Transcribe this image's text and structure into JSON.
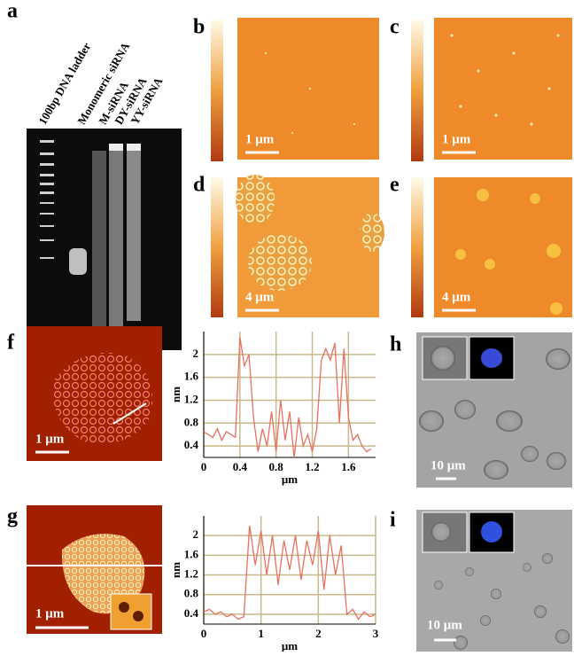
{
  "panel_labels": [
    "a",
    "b",
    "c",
    "d",
    "e",
    "f",
    "g",
    "h",
    "i"
  ],
  "gel_lane_labels": [
    "100bp DNA ladder",
    "Monomeric siRNA",
    "M-siRNA",
    "DY-siRNA",
    "YY-siRNA"
  ],
  "scale_bars": [
    "1 μm",
    "1 μm",
    "4 μm",
    "4 μm",
    "1 μm",
    "10 μm",
    "1 μm",
    "10 μm"
  ],
  "chart_data": [
    {
      "type": "line",
      "color": "#e8705e",
      "grid": true,
      "xlabel": "μm",
      "ylabel": "nm",
      "x": [
        0,
        0.05,
        0.1,
        0.15,
        0.2,
        0.25,
        0.3,
        0.35,
        0.4,
        0.45,
        0.5,
        0.55,
        0.6,
        0.65,
        0.7,
        0.75,
        0.8,
        0.85,
        0.9,
        0.95,
        1.0,
        1.05,
        1.1,
        1.15,
        1.2,
        1.25,
        1.3,
        1.35,
        1.4,
        1.45,
        1.5,
        1.55,
        1.6,
        1.65,
        1.7,
        1.75,
        1.8,
        1.85
      ],
      "values": [
        0.65,
        0.6,
        0.55,
        0.7,
        0.5,
        0.65,
        0.6,
        0.55,
        2.3,
        1.8,
        2.0,
        0.9,
        0.3,
        0.7,
        0.4,
        1.0,
        0.3,
        1.2,
        0.5,
        1.0,
        0.2,
        0.9,
        0.4,
        0.6,
        0.3,
        0.7,
        1.9,
        2.1,
        1.9,
        2.2,
        0.8,
        2.1,
        0.9,
        0.5,
        0.6,
        0.4,
        0.3,
        0.35
      ],
      "xlim": [
        0,
        1.9
      ],
      "ylim": [
        0.2,
        2.4
      ],
      "xticks": [
        0,
        0.4,
        0.8,
        1.2,
        1.6
      ],
      "yticks": [
        0.4,
        0.8,
        1.2,
        1.6,
        2
      ]
    },
    {
      "type": "line",
      "color": "#e8705e",
      "grid": true,
      "xlabel": "μm",
      "ylabel": "nm",
      "x": [
        0,
        0.1,
        0.2,
        0.3,
        0.4,
        0.5,
        0.6,
        0.7,
        0.8,
        0.9,
        1.0,
        1.1,
        1.2,
        1.3,
        1.4,
        1.5,
        1.6,
        1.7,
        1.8,
        1.9,
        2.0,
        2.1,
        2.2,
        2.3,
        2.4,
        2.5,
        2.6,
        2.7,
        2.8,
        2.9,
        3.0
      ],
      "values": [
        0.45,
        0.5,
        0.4,
        0.45,
        0.35,
        0.4,
        0.3,
        0.35,
        2.2,
        1.4,
        2.1,
        1.2,
        2.0,
        1.0,
        1.9,
        1.3,
        2.0,
        1.1,
        1.9,
        1.4,
        2.1,
        0.9,
        2.0,
        1.2,
        1.8,
        0.4,
        0.5,
        0.3,
        0.45,
        0.35,
        0.4
      ],
      "xlim": [
        0,
        3
      ],
      "ylim": [
        0.2,
        2.4
      ],
      "xticks": [
        0,
        1,
        2,
        3
      ],
      "yticks": [
        0.4,
        0.8,
        1.2,
        1.6,
        2
      ]
    }
  ]
}
